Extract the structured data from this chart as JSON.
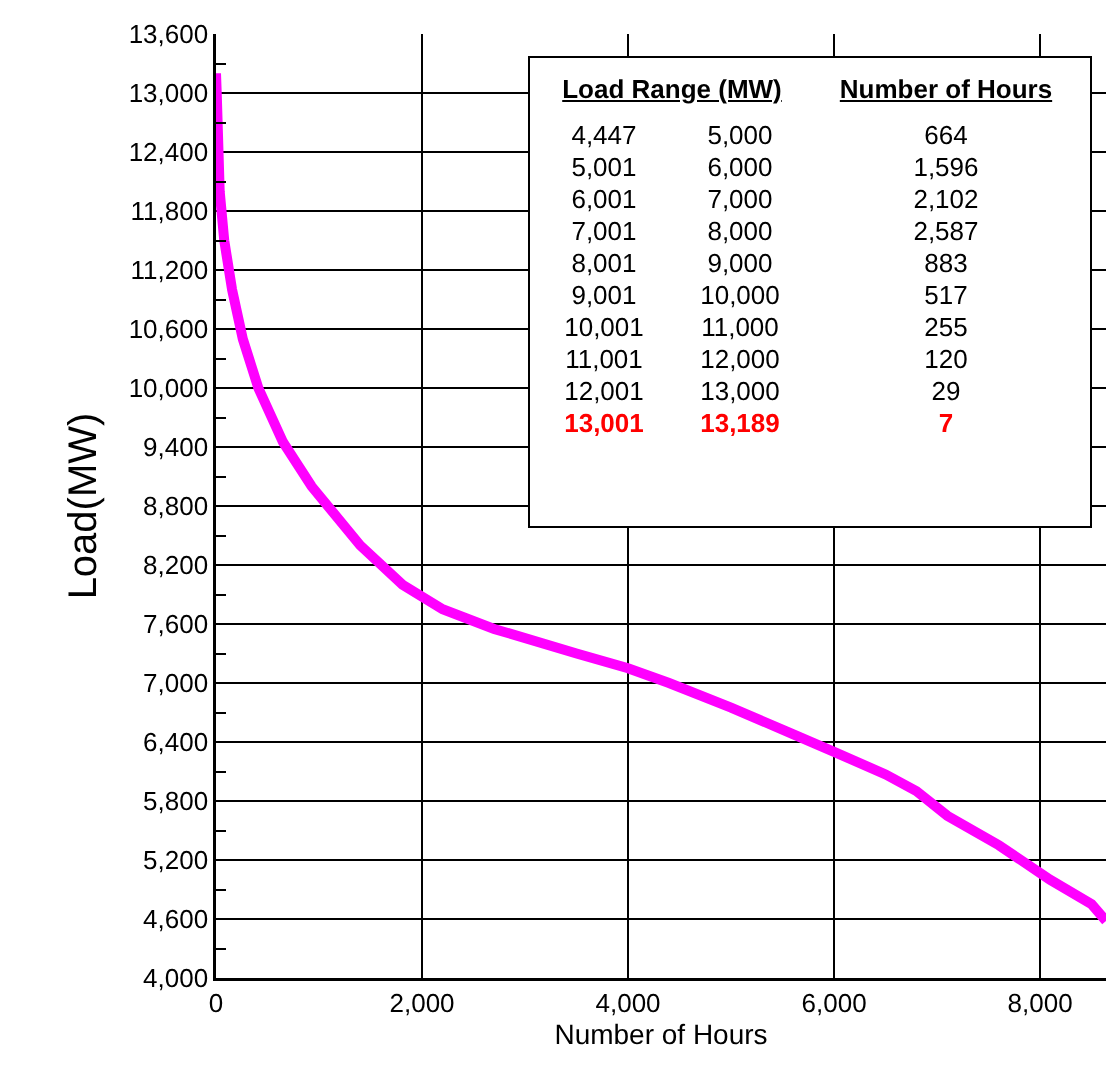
{
  "chart_data": {
    "type": "line",
    "xlabel": "Number of Hours",
    "ylabel": "Load(MW)",
    "x": [
      0,
      7,
      36,
      80,
      156,
      260,
      411,
      650,
      928,
      1400,
      1811,
      2200,
      2700,
      3500,
      4000,
      4398,
      5000,
      5600,
      6000,
      6500,
      6800,
      7100,
      7600,
      8096,
      8500,
      8640
    ],
    "series": [
      {
        "color": "#ff00ff",
        "values": [
          13200,
          13000,
          12000,
          11500,
          11000,
          10500,
          10000,
          9450,
          9000,
          8400,
          8000,
          7750,
          7550,
          7300,
          7150,
          7000,
          6750,
          6480,
          6300,
          6070,
          5900,
          5650,
          5350,
          5000,
          4750,
          4580
        ]
      }
    ],
    "xlim": [
      0,
      8640
    ],
    "xticks": [
      0,
      {
        "value": 2000,
        "label": "2,000"
      },
      {
        "value": 4000,
        "label": "4,000"
      },
      {
        "value": 6000,
        "label": "6,000"
      },
      {
        "value": 8000,
        "label": "8,000"
      }
    ],
    "ylim": [
      4000,
      13600
    ],
    "yticks": [
      {
        "value": 4000,
        "label": "4,000"
      },
      {
        "value": 4600,
        "label": "4,600"
      },
      {
        "value": 5200,
        "label": "5,200"
      },
      {
        "value": 5800,
        "label": "5,800"
      },
      {
        "value": 6400,
        "label": "6,400"
      },
      {
        "value": 7000,
        "label": "7,000"
      },
      {
        "value": 7600,
        "label": "7,600"
      },
      {
        "value": 8200,
        "label": "8,200"
      },
      {
        "value": 8800,
        "label": "8,800"
      },
      {
        "value": 9400,
        "label": "9,400"
      },
      {
        "value": 10000,
        "label": "10,000"
      },
      {
        "value": 10600,
        "label": "10,600"
      },
      {
        "value": 11200,
        "label": "11,200"
      },
      {
        "value": 11800,
        "label": "11,800"
      },
      {
        "value": 12400,
        "label": "12,400"
      },
      {
        "value": 13000,
        "label": "13,000"
      },
      {
        "value": 13600,
        "label": "13,600"
      }
    ],
    "grid": true,
    "marker": "none",
    "line_style": "solid",
    "legend": false,
    "annotations": [
      "Load Range (MW)",
      "Number of Hours",
      "4,447",
      "5,000",
      "664",
      "5,001",
      "6,000",
      "1,596",
      "6,001",
      "7,000",
      "2,102",
      "7,001",
      "8,000",
      "2,587",
      "8,001",
      "9,000",
      "883",
      "9,001",
      "10,000",
      "517",
      "10,001",
      "11,000",
      "255",
      "11,001",
      "12,000",
      "120",
      "12,001",
      "13,000",
      "29",
      "13,001",
      "13,189",
      "7"
    ]
  }
}
